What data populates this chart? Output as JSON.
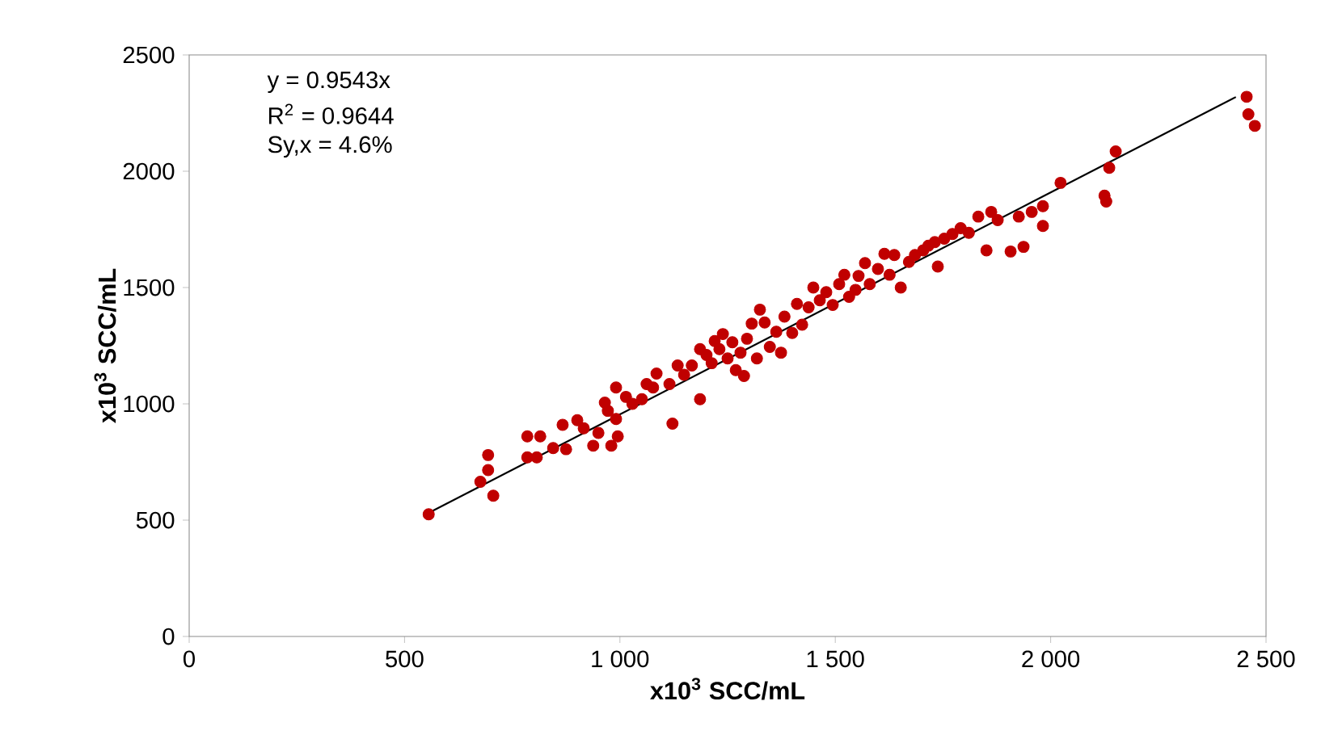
{
  "chart_data": {
    "type": "scatter",
    "xlabel": "x10$^{3}$ SCC/mL",
    "ylabel": "x10$^{3}$ SCC/mL",
    "xlim": [
      0,
      2500
    ],
    "ylim": [
      0,
      2500
    ],
    "xticks": [
      0,
      500,
      {
        "value": 1000,
        "label": "1 000"
      },
      {
        "value": 1500,
        "label": "1 500"
      },
      {
        "value": 2000,
        "label": "2 000"
      },
      {
        "value": 2500,
        "label": "2 500"
      }
    ],
    "yticks": [
      0,
      500,
      1000,
      1500,
      2000,
      2500
    ],
    "grid": false,
    "annotations": [
      "y = 0.9543x",
      "R$^{2}$ = 0.9644",
      "Sy,x = 4.6%"
    ],
    "series": [
      {
        "color": "#c00000",
        "x": [
          556,
          676,
          694,
          694,
          706,
          785,
          785,
          807,
          815,
          845,
          867,
          875,
          901,
          916,
          938,
          950,
          965,
          972,
          991,
          980,
          995,
          991,
          1014,
          1029,
          1051,
          1062,
          1077,
          1085,
          1115,
          1122,
          1134,
          1149,
          1167,
          1186,
          1186,
          1201,
          1213,
          1220,
          1231,
          1239,
          1250,
          1261,
          1269,
          1280,
          1288,
          1295,
          1306,
          1318,
          1325,
          1336,
          1348,
          1363,
          1374,
          1382,
          1400,
          1411,
          1423,
          1438,
          1449,
          1464,
          1479,
          1494,
          1509,
          1521,
          1532,
          1547,
          1554,
          1569,
          1580,
          1599,
          1614,
          1626,
          1637,
          1652,
          1671,
          1685,
          1704,
          1716,
          1731,
          1738,
          1753,
          1772,
          1791,
          1810,
          1832,
          1851,
          1862,
          1877,
          1907,
          1926,
          1937,
          1956,
          1982,
          1982,
          2023,
          2125,
          2129,
          2136,
          2151,
          2455,
          2459,
          2474
        ],
        "values": [
          525,
          665,
          780,
          715,
          605,
          860,
          770,
          770,
          860,
          810,
          910,
          805,
          930,
          895,
          820,
          875,
          1005,
          970,
          935,
          820,
          860,
          1070,
          1030,
          1000,
          1020,
          1085,
          1070,
          1130,
          1085,
          915,
          1165,
          1125,
          1165,
          1020,
          1235,
          1210,
          1175,
          1270,
          1235,
          1300,
          1195,
          1265,
          1145,
          1220,
          1120,
          1280,
          1345,
          1195,
          1405,
          1350,
          1245,
          1310,
          1220,
          1375,
          1305,
          1430,
          1340,
          1415,
          1500,
          1445,
          1480,
          1425,
          1515,
          1555,
          1460,
          1490,
          1550,
          1605,
          1515,
          1580,
          1645,
          1555,
          1640,
          1500,
          1610,
          1640,
          1660,
          1680,
          1695,
          1590,
          1710,
          1730,
          1755,
          1735,
          1805,
          1660,
          1825,
          1790,
          1655,
          1805,
          1675,
          1825,
          1765,
          1850,
          1950,
          1895,
          1870,
          2015,
          2085,
          2320,
          2245,
          2195
        ]
      },
      {
        "type": "line",
        "color": "#000000",
        "x": [
          556,
          2430
        ],
        "values": [
          531,
          2319
        ]
      }
    ]
  }
}
